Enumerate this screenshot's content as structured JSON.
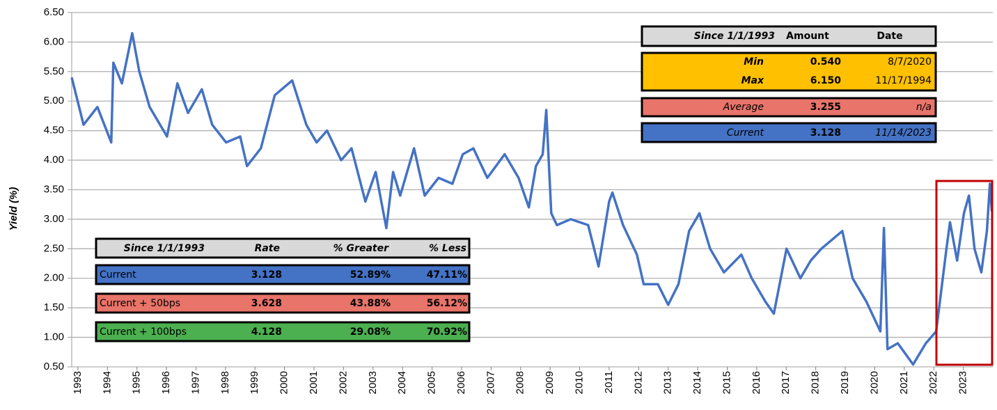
{
  "chart_data": {
    "type": "line",
    "y_label": "Yield (%)",
    "color": "#4472c4",
    "grid": true,
    "xlim": [
      1992.79,
      2024.0
    ],
    "xticks": [
      1993,
      1994,
      1995,
      1996,
      1997,
      1998,
      1999,
      2000,
      2001,
      2002,
      2003,
      2004,
      2005,
      2006,
      2007,
      2008,
      2009,
      2010,
      2011,
      2012,
      2013,
      2014,
      2015,
      2016,
      2017,
      2018,
      2019,
      2020,
      2021,
      2022,
      2023
    ],
    "ylim": [
      0.5,
      6.5
    ],
    "yticks": [
      {
        "value": 0.5,
        "label": "0.50"
      },
      {
        "value": 1,
        "label": "1.00"
      },
      {
        "value": 1.5,
        "label": "1.50"
      },
      {
        "value": 2,
        "label": "2.00"
      },
      {
        "value": 2.5,
        "label": "2.50"
      },
      {
        "value": 3,
        "label": "3.00"
      },
      {
        "value": 3.5,
        "label": "3.50"
      },
      {
        "value": 4,
        "label": "4.00"
      },
      {
        "value": 4.5,
        "label": "4.50"
      },
      {
        "value": 5,
        "label": "5.00"
      },
      {
        "value": 5.5,
        "label": "5.50"
      },
      {
        "value": 6,
        "label": "6.00"
      },
      {
        "value": 6.5,
        "label": "6.50"
      }
    ],
    "x": [
      1992.79,
      1993.19,
      1993.66,
      1994.13,
      1994.2,
      1994.49,
      1994.84,
      1995.08,
      1995.43,
      1996.02,
      1996.37,
      1996.73,
      1997.2,
      1997.55,
      1998.02,
      1998.5,
      1998.73,
      1999.2,
      1999.67,
      2000.26,
      2000.74,
      2001.09,
      2001.44,
      2001.92,
      2002.27,
      2002.74,
      2003.09,
      2003.45,
      2003.68,
      2003.92,
      2004.39,
      2004.75,
      2005.22,
      2005.69,
      2006.04,
      2006.4,
      2006.87,
      2007.46,
      2007.93,
      2008.28,
      2008.52,
      2008.75,
      2008.87,
      2009.04,
      2009.23,
      2009.7,
      2010.29,
      2010.64,
      2011.0,
      2011.11,
      2011.47,
      2011.94,
      2012.17,
      2012.65,
      2013.0,
      2013.35,
      2013.71,
      2014.06,
      2014.42,
      2014.89,
      2015.48,
      2015.83,
      2016.3,
      2016.58,
      2017.01,
      2017.48,
      2017.83,
      2018.19,
      2018.9,
      2019.25,
      2019.72,
      2020.19,
      2020.31,
      2020.43,
      2020.78,
      2021.3,
      2021.73,
      2022.08,
      2022.43,
      2022.55,
      2022.79,
      2023.02,
      2023.19,
      2023.38,
      2023.61,
      2023.8,
      2023.9,
      2023.97
    ],
    "values": [
      5.4,
      4.6,
      4.9,
      4.3,
      5.65,
      5.3,
      6.15,
      5.5,
      4.9,
      4.4,
      5.3,
      4.8,
      5.2,
      4.6,
      4.3,
      4.4,
      3.9,
      4.2,
      5.1,
      5.35,
      4.6,
      4.3,
      4.5,
      4.0,
      4.2,
      3.3,
      3.8,
      2.85,
      3.8,
      3.4,
      4.2,
      3.4,
      3.7,
      3.6,
      4.1,
      4.2,
      3.7,
      4.1,
      3.7,
      3.2,
      3.9,
      4.1,
      4.85,
      3.1,
      2.9,
      3.0,
      2.9,
      2.2,
      3.3,
      3.45,
      2.9,
      2.4,
      1.9,
      1.9,
      1.55,
      1.9,
      2.8,
      3.1,
      2.5,
      2.1,
      2.4,
      2.0,
      1.6,
      1.4,
      2.5,
      2.0,
      2.3,
      2.5,
      2.8,
      2.0,
      1.6,
      1.1,
      2.85,
      0.8,
      0.9,
      0.54,
      0.9,
      1.1,
      2.5,
      2.95,
      2.3,
      3.1,
      3.4,
      2.5,
      2.1,
      2.8,
      3.6,
      3.13
    ]
  },
  "summary_table": {
    "header": [
      "Since 1/1/1993",
      "Amount",
      "Date"
    ],
    "rows": [
      [
        "Min",
        "0.540",
        "8/7/2020"
      ],
      [
        "Max",
        "6.150",
        "11/17/1994"
      ],
      [
        "Average",
        "3.255",
        "n/a"
      ],
      [
        "Current",
        "3.128",
        "11/14/2023"
      ]
    ]
  },
  "percentile_table": {
    "header": [
      "Since 1/1/1993",
      "Rate",
      "% Greater",
      "% Less"
    ],
    "rows": [
      [
        "Current",
        "3.128",
        "52.89%",
        "47.11%"
      ],
      [
        "Current + 50bps",
        "3.628",
        "43.88%",
        "56.12%"
      ],
      [
        "Current + 100bps",
        "4.128",
        "29.08%",
        "70.92%"
      ]
    ]
  }
}
